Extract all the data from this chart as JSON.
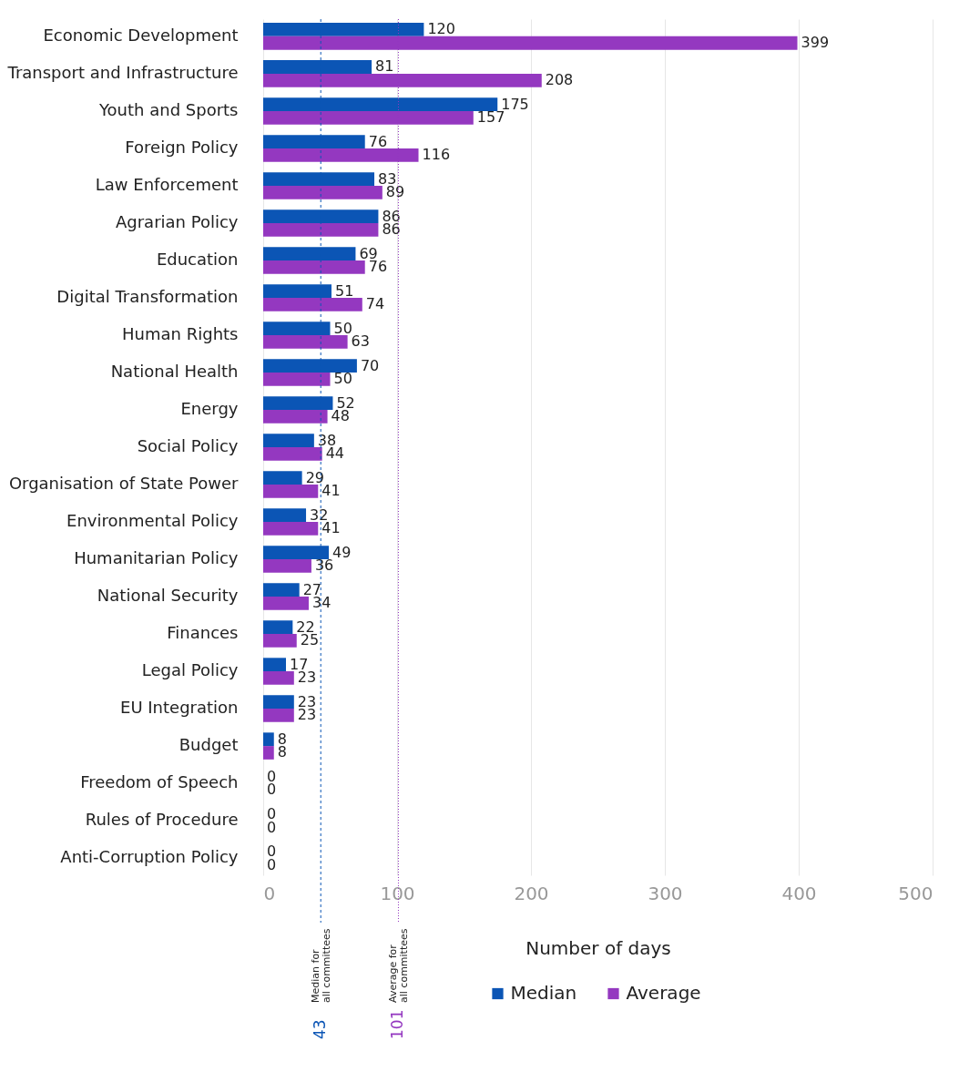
{
  "chart_data": {
    "type": "bar",
    "orientation": "horizontal",
    "xlabel": "Number of days",
    "categories": [
      "Economic Development",
      "Transport and Infrastructure",
      "Youth and Sports",
      "Foreign Policy",
      "Law Enforcement",
      "Agrarian Policy",
      "Education",
      "Digital Transformation",
      "Human Rights",
      "National Health",
      "Energy",
      "Social Policy",
      "Organisation of State Power",
      "Environmental Policy",
      "Humanitarian Policy",
      "National Security",
      "Finances",
      "Legal Policy",
      "EU Integration",
      "Budget",
      "Freedom of Speech",
      "Rules of Procedure",
      "Anti-Corruption Policy"
    ],
    "series": [
      {
        "name": "Median",
        "color": "#0b55b5",
        "values": [
          120,
          81,
          175,
          76,
          83,
          86,
          69,
          51,
          50,
          70,
          52,
          38,
          29,
          32,
          49,
          27,
          22,
          17,
          23,
          8,
          0,
          0,
          0
        ]
      },
      {
        "name": "Average",
        "color": "#9438c0",
        "values": [
          399,
          208,
          157,
          116,
          89,
          86,
          76,
          74,
          63,
          50,
          48,
          44,
          41,
          41,
          36,
          34,
          25,
          23,
          23,
          8,
          0,
          0,
          0
        ]
      }
    ],
    "annotations": [
      "43",
      "101"
    ],
    "xlim": [
      0,
      500
    ],
    "xticks": [
      0,
      100,
      200,
      300,
      400,
      500
    ],
    "grid": "x",
    "legend": "bottom",
    "data_labels": true,
    "ref_lines": [
      {
        "axis": "x",
        "value": 43,
        "label": "Median for all committees",
        "color": "#0b55b5",
        "line_style": "dashed"
      },
      {
        "axis": "x",
        "value": 101,
        "label": "Average for all committees",
        "color": "#9438c0",
        "line_style": "dotted"
      }
    ]
  }
}
